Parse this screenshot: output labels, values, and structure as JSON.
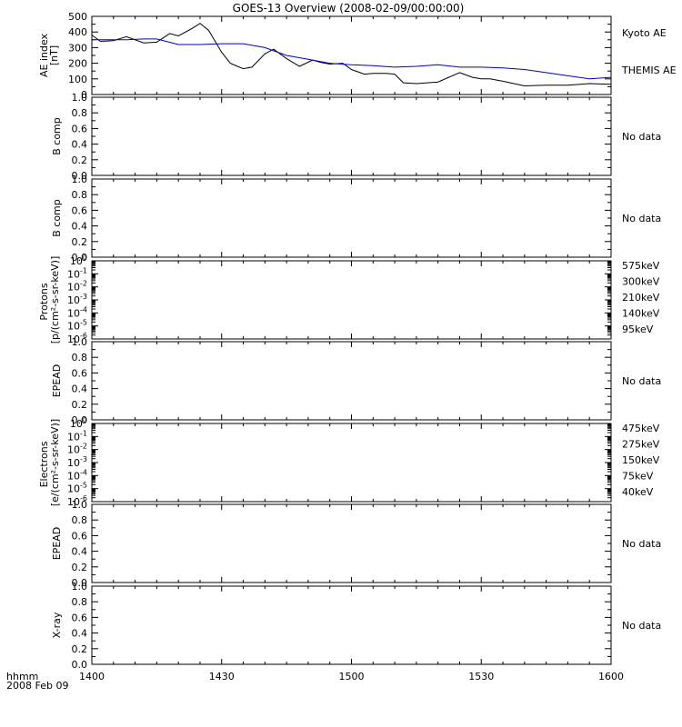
{
  "title": "GOES-13 Overview (2008-02-09/00:00:00)",
  "bottom": {
    "label_line1": "hhmm",
    "label_line2": "2008 Feb 09",
    "xticks": [
      "1400",
      "1430",
      "1500",
      "1530",
      "1600"
    ],
    "xtick_values": [
      0,
      30,
      60,
      90,
      120
    ]
  },
  "colors": {
    "kyoto": "#000000",
    "themis": "#0000c8",
    "575keV": "#8b0000",
    "300keV": "#e8a000",
    "210keV": "#00cc33",
    "140keV": "#0000c8",
    "95keV": "#000000",
    "475keV": "#8b0000",
    "275keV": "#e8a000",
    "150keV": "#00cc33",
    "75keV": "#0000c8",
    "40keV": "#000000"
  },
  "chart_data": [
    {
      "type": "line",
      "panel": "ae",
      "ylabel": "AE index [nT]",
      "ylim": [
        0,
        500
      ],
      "yticks": [
        "0",
        "100",
        "200",
        "300",
        "400",
        "500"
      ],
      "ytick_values": [
        0,
        100,
        200,
        300,
        400,
        500
      ],
      "xlim": [
        0,
        120
      ],
      "series": [
        {
          "name": "Kyoto AE",
          "color": "#000000",
          "x": [
            0,
            2,
            5,
            8,
            12,
            15,
            18,
            20,
            23,
            25,
            27,
            30,
            32,
            35,
            37,
            40,
            42,
            45,
            48,
            51,
            53,
            55,
            58,
            60,
            63,
            65,
            68,
            70,
            72,
            75,
            80,
            85,
            88,
            90,
            92,
            95,
            100,
            105,
            110,
            115,
            120
          ],
          "y": [
            380,
            340,
            345,
            370,
            330,
            335,
            390,
            375,
            420,
            455,
            410,
            270,
            200,
            165,
            175,
            260,
            290,
            230,
            180,
            220,
            205,
            195,
            200,
            160,
            130,
            135,
            135,
            130,
            75,
            70,
            80,
            140,
            110,
            100,
            100,
            85,
            55,
            60,
            60,
            70,
            65
          ]
        },
        {
          "name": "THEMIS AE",
          "color": "#0000c8",
          "x": [
            0,
            5,
            8,
            12,
            15,
            20,
            25,
            30,
            35,
            40,
            45,
            50,
            55,
            60,
            65,
            70,
            75,
            80,
            85,
            90,
            95,
            100,
            105,
            110,
            115,
            120
          ],
          "y": [
            350,
            350,
            350,
            355,
            355,
            320,
            320,
            325,
            325,
            300,
            250,
            225,
            200,
            190,
            185,
            175,
            180,
            190,
            175,
            175,
            170,
            160,
            140,
            120,
            100,
            110
          ]
        }
      ],
      "legend": [
        "Kyoto AE",
        "THEMIS AE"
      ]
    },
    {
      "type": "line",
      "panel": "bcomp1",
      "ylabel": "B comp",
      "ylim": [
        0,
        1
      ],
      "yticks": [
        "0.0",
        "0.2",
        "0.4",
        "0.6",
        "0.8",
        "1.0"
      ],
      "status": "No data",
      "series": []
    },
    {
      "type": "line",
      "panel": "bcomp2",
      "ylabel": "B comp",
      "ylim": [
        0,
        1
      ],
      "yticks": [
        "0.0",
        "0.2",
        "0.4",
        "0.6",
        "0.8",
        "1.0"
      ],
      "status": "No data",
      "series": []
    },
    {
      "type": "line",
      "panel": "protons",
      "ylabel_line1": "Protons",
      "ylabel_line2": "[p/(cm²-s-sr-keV)]",
      "yscale": "log",
      "ylim": [
        1e-06,
        1
      ],
      "yticks_exp": [
        "0",
        "-1",
        "-2",
        "-3",
        "-4",
        "-5",
        "-6"
      ],
      "series": [],
      "legend": [
        "575keV",
        "300keV",
        "210keV",
        "140keV",
        "95keV"
      ]
    },
    {
      "type": "line",
      "panel": "epead1",
      "ylabel": "EPEAD",
      "ylim": [
        0,
        1
      ],
      "yticks": [
        "0.0",
        "0.2",
        "0.4",
        "0.6",
        "0.8",
        "1.0"
      ],
      "status": "No data",
      "series": []
    },
    {
      "type": "line",
      "panel": "electrons",
      "ylabel_line1": "Electrons",
      "ylabel_line2": "[e/(cm²-s-sr-keV)]",
      "yscale": "log",
      "ylim": [
        1e-06,
        1
      ],
      "yticks_exp": [
        "0",
        "-1",
        "-2",
        "-3",
        "-4",
        "-5",
        "-6"
      ],
      "series": [],
      "legend": [
        "475keV",
        "275keV",
        "150keV",
        "75keV",
        "40keV"
      ]
    },
    {
      "type": "line",
      "panel": "epead2",
      "ylabel": "EPEAD",
      "ylim": [
        0,
        1
      ],
      "yticks": [
        "0.0",
        "0.2",
        "0.4",
        "0.6",
        "0.8",
        "1.0"
      ],
      "status": "No data",
      "series": []
    },
    {
      "type": "line",
      "panel": "xray",
      "ylabel": "X-ray",
      "ylim": [
        0,
        1
      ],
      "yticks": [
        "0.0",
        "0.2",
        "0.4",
        "0.6",
        "0.8",
        "1.0"
      ],
      "status": "No data",
      "series": []
    }
  ]
}
